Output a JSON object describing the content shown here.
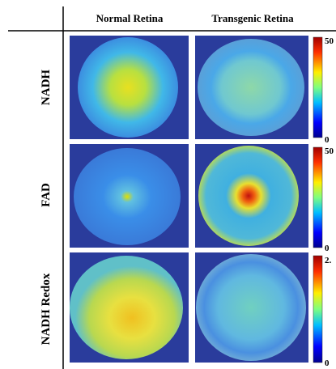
{
  "columns": [
    "Normal Retina",
    "Transgenic Retina"
  ],
  "rows": [
    {
      "label": "NADH",
      "colorbar": {
        "top": "50",
        "bottom": "0"
      }
    },
    {
      "label": "FAD",
      "colorbar": {
        "top": "50",
        "bottom": "0"
      }
    },
    {
      "label": "NADH Redox",
      "colorbar": {
        "top": "2.",
        "bottom": "0"
      }
    }
  ]
}
